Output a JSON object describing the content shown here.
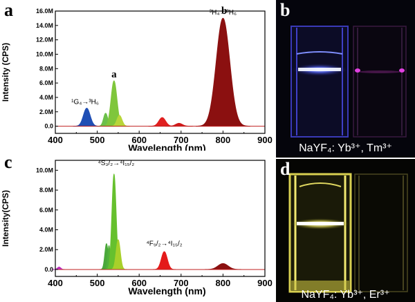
{
  "panels": {
    "a_label": "a",
    "b_label": "b",
    "c_label": "c",
    "d_label": "d"
  },
  "photos": {
    "b_caption": "NaYF₄: Yb³⁺, Tm³⁺",
    "d_caption": "NaYF₄: Yb³⁺, Er³⁺"
  },
  "chart_data": [
    {
      "id": "a",
      "type": "area",
      "xlabel": "Wavelength (nm)",
      "ylabel": "Intensity (CPS)",
      "xlim": [
        400,
        900
      ],
      "ylim": [
        -1.0,
        16.0
      ],
      "xticks": [
        "400",
        "500",
        "600",
        "700",
        "800",
        "900"
      ],
      "yticks": [
        "0.0",
        "2.0M",
        "4.0M",
        "6.0M",
        "8.0M",
        "10.0M",
        "12.0M",
        "14.0M",
        "16.0M"
      ],
      "ytick_values": [
        0,
        2,
        4,
        6,
        8,
        10,
        12,
        14,
        16
      ],
      "peaks": [
        {
          "center": 475,
          "height": 2.5,
          "width": 8,
          "color": "#1f4fb5"
        },
        {
          "center": 520,
          "height": 1.8,
          "width": 5,
          "color": "#6cc04a"
        },
        {
          "center": 540,
          "height": 6.3,
          "width": 7,
          "color": "#7fc63c"
        },
        {
          "center": 553,
          "height": 1.5,
          "width": 6,
          "color": "#b8d63a"
        },
        {
          "center": 655,
          "height": 1.2,
          "width": 8,
          "color": "#e02020"
        },
        {
          "center": 695,
          "height": 0.4,
          "width": 8,
          "color": "#d01a1a"
        },
        {
          "center": 800,
          "height": 15.0,
          "width": 16,
          "color": "#8b1010"
        }
      ],
      "annotations": [
        {
          "x": 471,
          "y": 3.1,
          "text": "¹G₄→³H₆"
        },
        {
          "x": 800,
          "y": 15.5,
          "text": "³H₄→³H₆"
        }
      ],
      "peak_labels": [
        {
          "x": 540,
          "y": 6.8,
          "text": "a"
        },
        {
          "x": 803,
          "y": 15.6,
          "text": "b"
        }
      ]
    },
    {
      "id": "c",
      "type": "area",
      "xlabel": "Wavelength (nm)",
      "ylabel": "Intensity(CPS)",
      "xlim": [
        400,
        900
      ],
      "ylim": [
        -0.7,
        11.0
      ],
      "xticks": [
        "400",
        "500",
        "600",
        "700",
        "800",
        "900"
      ],
      "yticks": [
        "0.0",
        "2.0M",
        "4.0M",
        "6.0M",
        "8.0M",
        "10.0M"
      ],
      "ytick_values": [
        0,
        2,
        4,
        6,
        8,
        10
      ],
      "peaks": [
        {
          "center": 409,
          "height": 0.25,
          "width": 4,
          "color": "#c030c0"
        },
        {
          "center": 522,
          "height": 2.6,
          "width": 4,
          "color": "#4aa83a"
        },
        {
          "center": 528,
          "height": 2.4,
          "width": 3,
          "color": "#52b03a"
        },
        {
          "center": 540,
          "height": 9.6,
          "width": 5,
          "color": "#66c02e"
        },
        {
          "center": 550,
          "height": 3.0,
          "width": 5,
          "color": "#a8d02a"
        },
        {
          "center": 660,
          "height": 1.8,
          "width": 7,
          "color": "#e41a1a"
        },
        {
          "center": 800,
          "height": 0.6,
          "width": 12,
          "color": "#8b1010"
        }
      ],
      "annotations": [
        {
          "x": 545,
          "y": 10.5,
          "text": "⁴S₃/₂→⁴I₁₅/₂"
        },
        {
          "x": 660,
          "y": 2.4,
          "text": "⁴F₉/₂→⁴I₁₅/₂"
        }
      ],
      "peak_labels": []
    }
  ]
}
